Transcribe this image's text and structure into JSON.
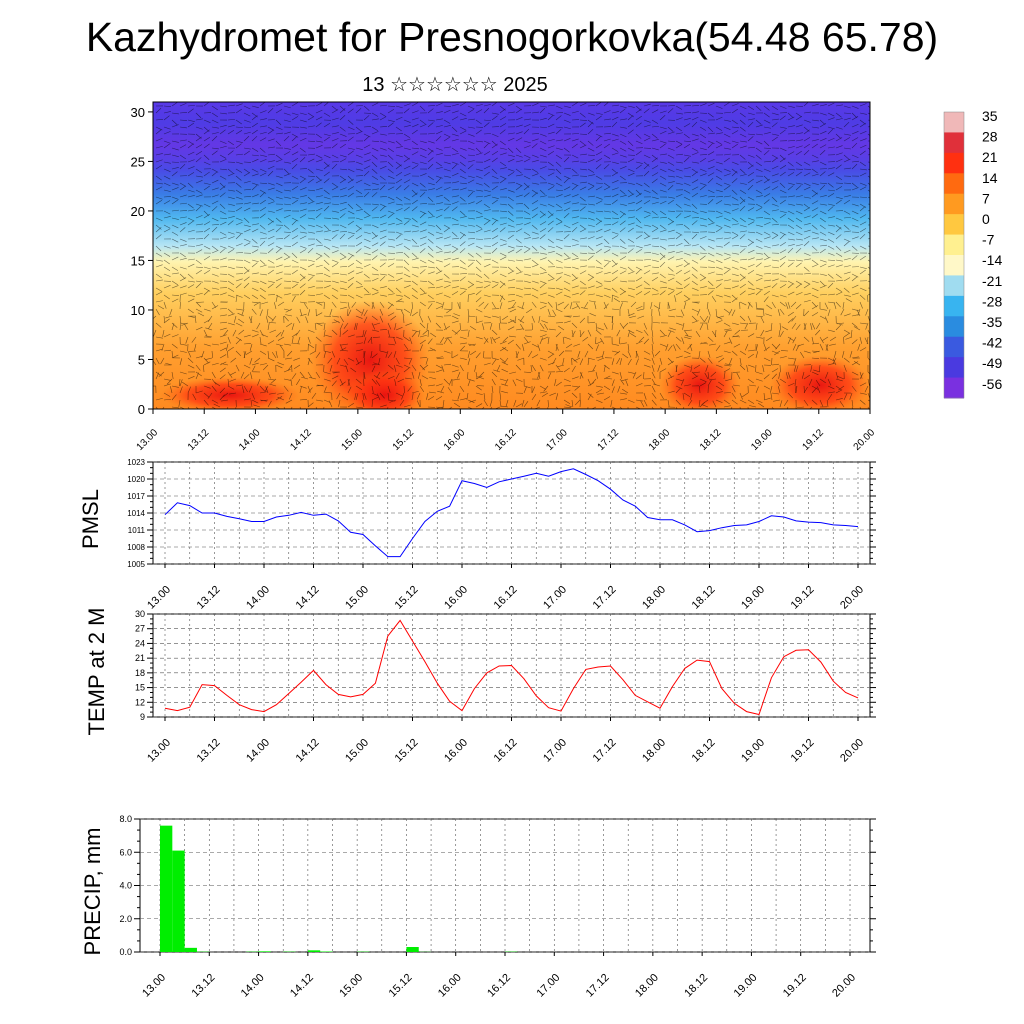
{
  "title": "Kazhydromet for Presnogorkovka(54.48 65.78)",
  "subtitle": "13 ☆☆☆☆☆☆ 2025",
  "chart_data": [
    {
      "type": "heatmap",
      "name": "temperature-profile",
      "x_ticks": [
        "13.00",
        "13.12",
        "14.00",
        "14.12",
        "15.00",
        "15.12",
        "16.00",
        "16.12",
        "17.00",
        "17.12",
        "18.00",
        "18.12",
        "19.00",
        "19.12",
        "20.00"
      ],
      "y_ticks": [
        0,
        5,
        10,
        15,
        20,
        25,
        30
      ],
      "ylim": [
        0,
        31
      ],
      "colorbar_labels": [
        "35",
        "28",
        "21",
        "14",
        "7",
        "0",
        "-7",
        "-14",
        "-21",
        "-28",
        "-35",
        "-42",
        "-49",
        "-56"
      ],
      "colorbar_colors": [
        "#f0b8b8",
        "#e0303a",
        "#ff3010",
        "#ff6a10",
        "#ff9a20",
        "#ffc840",
        "#fff090",
        "#fff8c8",
        "#a0dcf0",
        "#38b4f0",
        "#2a8ce0",
        "#3a5ae0",
        "#4a3ae0",
        "#7a30e0"
      ],
      "overlay": "wind barbs"
    },
    {
      "type": "line",
      "ylabel": "PMSL",
      "yticks": [
        "1005",
        "1008",
        "1011",
        "1014",
        "1017",
        "1020",
        "1023"
      ],
      "ylim": [
        1005,
        1023
      ],
      "x_ticks": [
        "13.00",
        "13.12",
        "14.00",
        "14.12",
        "15.00",
        "15.12",
        "16.00",
        "16.12",
        "17.00",
        "17.12",
        "18.00",
        "18.12",
        "19.00",
        "19.12",
        "20.00"
      ],
      "color": "#0000ff",
      "x": [
        0,
        3,
        6,
        9,
        12,
        15,
        18,
        21,
        24,
        27,
        30,
        33,
        36,
        39,
        42,
        45,
        48,
        51,
        54,
        57,
        60,
        63,
        66,
        69,
        72,
        75,
        78,
        81,
        84,
        87,
        90,
        93,
        96,
        99,
        102,
        105,
        108,
        111,
        114,
        117,
        120,
        123,
        126,
        129,
        132,
        135,
        138,
        141,
        144,
        147,
        150,
        153,
        156,
        159,
        162,
        165,
        168
      ],
      "values": [
        1013.7,
        1015.8,
        1015.3,
        1014,
        1014,
        1013.4,
        1013,
        1012.5,
        1012.5,
        1013.3,
        1013.6,
        1014.1,
        1013.6,
        1013.8,
        1012.6,
        1010.6,
        1010.2,
        1008.2,
        1006.3,
        1006.3,
        1009.5,
        1012.5,
        1014.3,
        1015.2,
        1019.7,
        1019.2,
        1018.5,
        1019.5,
        1020,
        1020.5,
        1021,
        1020.5,
        1021.3,
        1021.8,
        1020.8,
        1019.7,
        1018.2,
        1016.3,
        1015.2,
        1013.2,
        1012.8,
        1012.8,
        1011.9,
        1010.7,
        1010.9,
        1011.4,
        1011.8,
        1011.9,
        1012.5,
        1013.5,
        1013.3,
        1012.6,
        1012.4,
        1012.3,
        1011.9,
        1011.8,
        1011.6
      ]
    },
    {
      "type": "line",
      "ylabel": "TEMP at 2 M",
      "yticks": [
        "9",
        "12",
        "15",
        "18",
        "21",
        "24",
        "27",
        "30"
      ],
      "ylim": [
        9,
        30
      ],
      "x_ticks": [
        "13.00",
        "13.12",
        "14.00",
        "14.12",
        "15.00",
        "15.12",
        "16.00",
        "16.12",
        "17.00",
        "17.12",
        "18.00",
        "18.12",
        "19.00",
        "19.12",
        "20.00"
      ],
      "color": "#ff0000",
      "x": [
        0,
        3,
        6,
        9,
        12,
        15,
        18,
        21,
        24,
        27,
        30,
        33,
        36,
        39,
        42,
        45,
        48,
        51,
        54,
        57,
        60,
        63,
        66,
        69,
        72,
        75,
        78,
        81,
        84,
        87,
        90,
        93,
        96,
        99,
        102,
        105,
        108,
        111,
        114,
        117,
        120,
        123,
        126,
        129,
        132,
        135,
        138,
        141,
        144,
        147,
        150,
        153,
        156,
        159,
        162,
        165,
        168
      ],
      "values": [
        10.8,
        10.3,
        11,
        15.6,
        15.4,
        13.4,
        11.5,
        10.5,
        10.1,
        11.5,
        13.8,
        16.1,
        18.5,
        15.6,
        13.6,
        13.1,
        13.6,
        15.9,
        25.5,
        28.7,
        24.5,
        20.3,
        15.9,
        12.2,
        10.3,
        14.8,
        18,
        19.4,
        19.5,
        16.8,
        13.3,
        10.9,
        10.2,
        14.8,
        18.7,
        19.2,
        19.4,
        16.6,
        13.4,
        12.1,
        10.8,
        15.2,
        18.9,
        20.6,
        20.3,
        14.8,
        11.8,
        10.1,
        9.5,
        17,
        21.3,
        22.6,
        22.7,
        20.2,
        16.3,
        14,
        12.9
      ]
    },
    {
      "type": "bar",
      "ylabel": "PRECIP, mm",
      "yticks": [
        "0.0",
        "2.0",
        "4.0",
        "6.0",
        "8.0"
      ],
      "ylim": [
        0,
        8
      ],
      "x_ticks": [
        "13.00",
        "13.12",
        "14.00",
        "14.12",
        "15.00",
        "15.12",
        "16.00",
        "16.12",
        "17.00",
        "17.12",
        "18.00",
        "18.12",
        "19.00",
        "19.12",
        "20.00"
      ],
      "color": "#00ee00",
      "x": [
        3,
        6,
        9,
        12,
        15,
        18,
        21,
        24,
        27,
        30,
        33,
        36,
        39,
        42,
        45,
        48,
        51,
        54,
        57,
        60,
        63,
        66,
        69,
        72,
        75,
        78,
        81,
        84,
        87,
        90,
        93,
        96,
        99,
        102,
        105,
        108,
        111,
        114,
        117,
        120,
        123,
        126,
        129,
        132,
        135,
        138,
        141,
        144,
        147,
        150,
        153,
        156,
        159,
        162,
        165,
        168
      ],
      "values": [
        7.6,
        6.1,
        0.25,
        0.02,
        0.0,
        0.0,
        0.0,
        0.02,
        0.04,
        0.0,
        0.02,
        0.0,
        0.1,
        0.03,
        0.0,
        0.0,
        0.02,
        0.0,
        0.0,
        0.0,
        0.3,
        0.01,
        0.0,
        0.0,
        0.0,
        0.0,
        0.0,
        0.0,
        0.02,
        0.0,
        0.0,
        0.0,
        0.0,
        0.0,
        0.0,
        0.0,
        0.0,
        0.0,
        0.0,
        0.0,
        0.0,
        0.0,
        0.0,
        0.0,
        0.0,
        0.0,
        0.0,
        0.0,
        0.0,
        0.0,
        0.0,
        0.0,
        0.0,
        0.0,
        0.0,
        0.0
      ]
    }
  ]
}
